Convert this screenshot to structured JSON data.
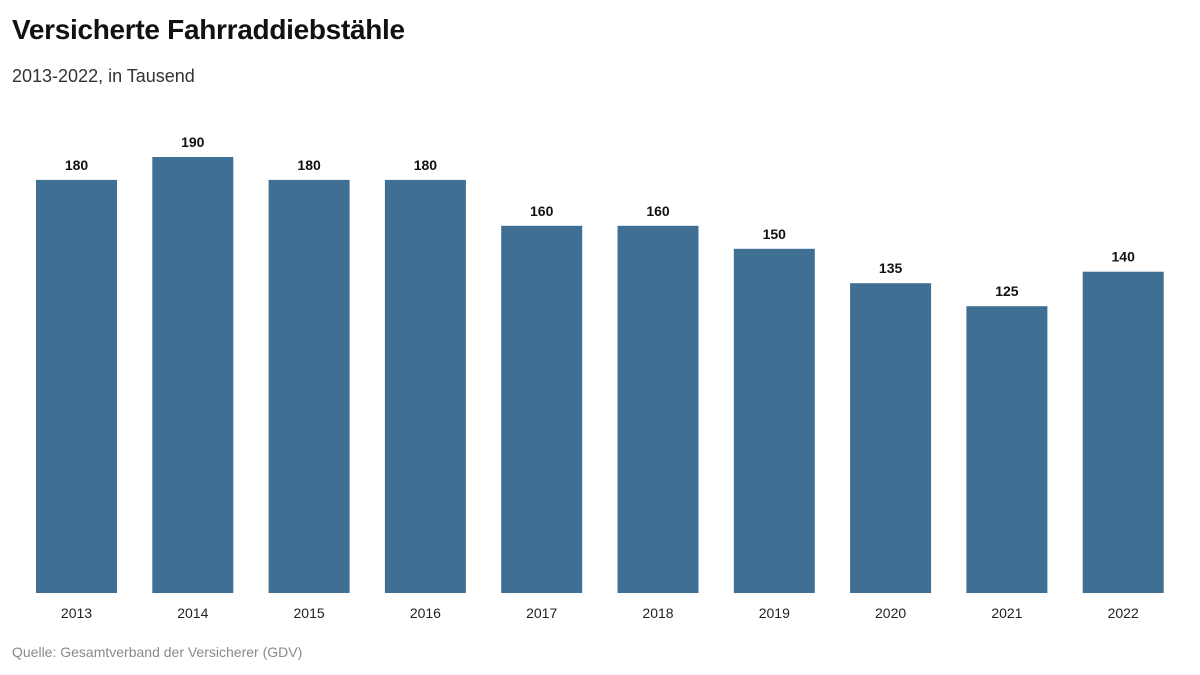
{
  "header": {
    "title": "Versicherte Fahrraddiebstähle",
    "subtitle": "2013-2022, in Tausend"
  },
  "footer": {
    "source": "Quelle: Gesamtverband der Versicherer (GDV)"
  },
  "colors": {
    "bar": "#3f7094"
  },
  "chart_data": {
    "type": "bar",
    "categories": [
      "2013",
      "2014",
      "2015",
      "2016",
      "2017",
      "2018",
      "2019",
      "2020",
      "2021",
      "2022"
    ],
    "values": [
      180,
      190,
      180,
      180,
      160,
      160,
      150,
      135,
      125,
      140
    ],
    "title": "Versicherte Fahrraddiebstähle",
    "subtitle": "2013-2022, in Tausend",
    "xlabel": "",
    "ylabel": "",
    "ylim": [
      0,
      190
    ],
    "grid": false,
    "legend": "none",
    "data_labels": true
  }
}
